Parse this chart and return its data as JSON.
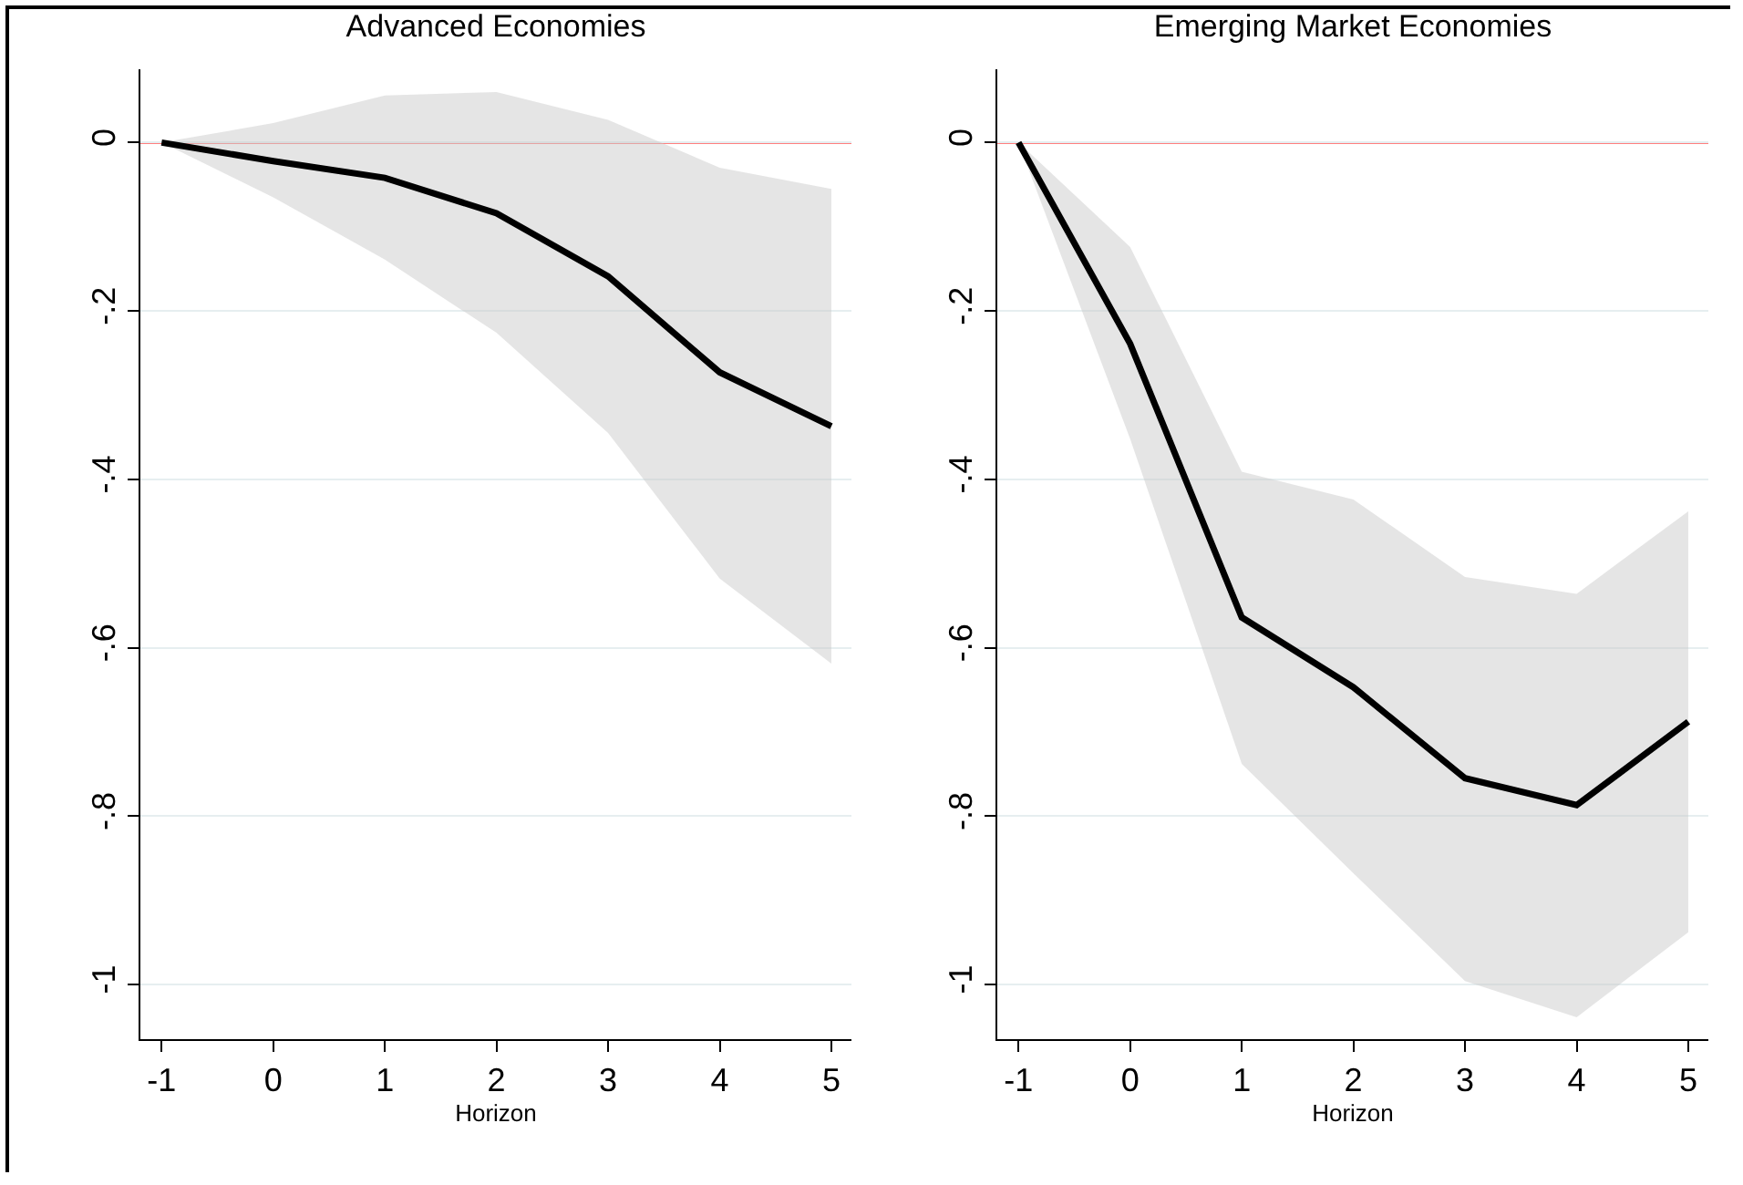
{
  "chart_data": [
    {
      "type": "line",
      "title": "Advanced Economies",
      "xlabel": "Horizon",
      "x": [
        -1,
        0,
        1,
        2,
        3,
        4,
        5
      ],
      "series": [
        {
          "color": "#000000",
          "values": [
            0,
            -0.022,
            -0.042,
            -0.084,
            -0.159,
            -0.273,
            -0.337
          ],
          "lower": [
            0,
            -0.065,
            -0.139,
            -0.226,
            -0.345,
            -0.518,
            -0.619
          ],
          "upper": [
            0,
            0.023,
            0.056,
            0.06,
            0.027,
            -0.03,
            -0.055
          ]
        }
      ],
      "xlim": [
        -1.19,
        5.18
      ],
      "xticks": [
        -1,
        0,
        1,
        2,
        3,
        4,
        5
      ],
      "ylim": [
        -1.065,
        0.087
      ],
      "yticks": [
        {
          "value": 0,
          "label": "0"
        },
        {
          "value": -0.2,
          "label": "-.2"
        },
        {
          "value": -0.4,
          "label": "-.4"
        },
        {
          "value": -0.6,
          "label": "-.6"
        },
        {
          "value": -0.8,
          "label": "-.8"
        },
        {
          "value": -1,
          "label": "-1"
        }
      ],
      "ref_lines": [
        {
          "axis": "y",
          "value": 0,
          "color": "#ff0000"
        }
      ],
      "grid": "y",
      "marker": "none",
      "line_style": "solid"
    },
    {
      "type": "line",
      "title": "Emerging Market Economies",
      "xlabel": "Horizon",
      "x": [
        -1,
        0,
        1,
        2,
        3,
        4,
        5
      ],
      "series": [
        {
          "color": "#000000",
          "values": [
            0,
            -0.239,
            -0.564,
            -0.647,
            -0.755,
            -0.787,
            -0.688
          ],
          "lower": [
            0,
            -0.352,
            -0.738,
            -0.868,
            -0.996,
            -1.039,
            -0.938
          ],
          "upper": [
            0,
            -0.124,
            -0.391,
            -0.424,
            -0.516,
            -0.536,
            -0.438
          ]
        }
      ],
      "xlim": [
        -1.19,
        5.18
      ],
      "xticks": [
        -1,
        0,
        1,
        2,
        3,
        4,
        5
      ],
      "ylim": [
        -1.065,
        0.087
      ],
      "yticks": [
        {
          "value": 0,
          "label": "0"
        },
        {
          "value": -0.2,
          "label": "-.2"
        },
        {
          "value": -0.4,
          "label": "-.4"
        },
        {
          "value": -0.6,
          "label": "-.6"
        },
        {
          "value": -0.8,
          "label": "-.8"
        },
        {
          "value": -1,
          "label": "-1"
        }
      ],
      "ref_lines": [
        {
          "axis": "y",
          "value": 0,
          "color": "#ff0000"
        }
      ],
      "grid": "y",
      "marker": "none",
      "line_style": "solid"
    }
  ]
}
